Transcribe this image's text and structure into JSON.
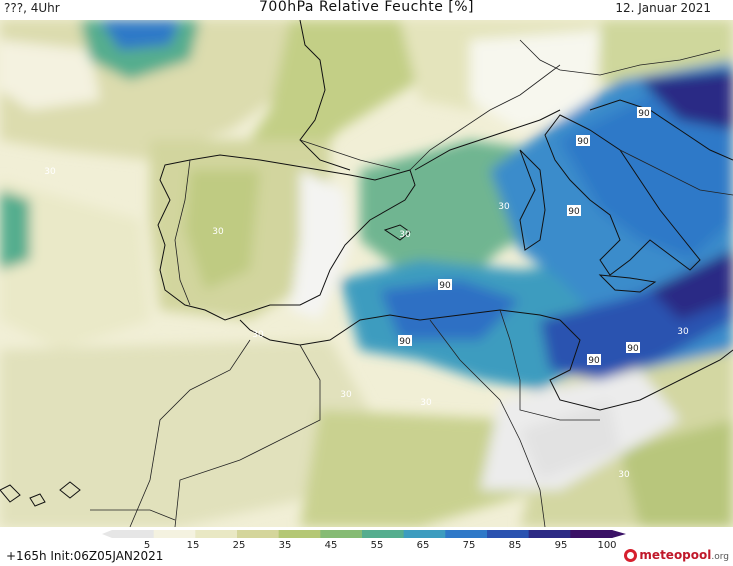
{
  "header": {
    "left": "???, 4Uhr",
    "title": "700hPa Relative Feuchte [%]",
    "date": "12. Januar 2021"
  },
  "footer": {
    "run_info": "+165h  Init:06Z05JAN2021",
    "logo_name": "meteopool",
    "logo_tld": ".org"
  },
  "colorbar": {
    "ticks": [
      "5",
      "15",
      "25",
      "35",
      "45",
      "55",
      "65",
      "75",
      "85",
      "95",
      "100"
    ],
    "colors": [
      "#e6e6e6",
      "#f4f2e0",
      "#e9e8c4",
      "#d4d59b",
      "#b4c775",
      "#86bb74",
      "#55ad8e",
      "#3d9cbf",
      "#2f79c8",
      "#2a52b0",
      "#2c2a85",
      "#3a1166"
    ]
  },
  "contour_labels": [
    {
      "value": "30"
    },
    {
      "value": "30"
    },
    {
      "value": "30"
    },
    {
      "value": "30"
    },
    {
      "value": "30"
    },
    {
      "value": "30"
    },
    {
      "value": "30"
    },
    {
      "value": "30"
    },
    {
      "value": "90"
    },
    {
      "value": "90"
    },
    {
      "value": "90"
    },
    {
      "value": "90"
    },
    {
      "value": "90"
    },
    {
      "value": "90"
    },
    {
      "value": "90"
    },
    {
      "value": "30"
    }
  ]
}
